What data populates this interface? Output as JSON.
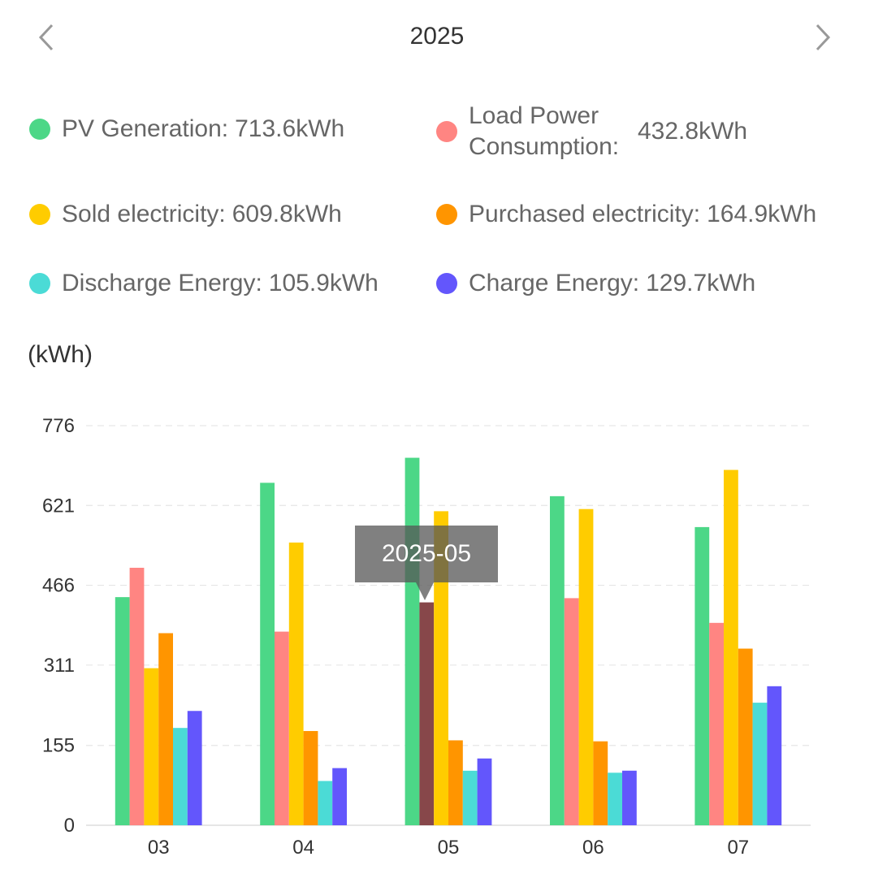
{
  "header": {
    "year": "2025",
    "prev_icon": "chevron-left-icon",
    "next_icon": "chevron-right-icon"
  },
  "legend": [
    {
      "label": "PV Generation:",
      "value": "713.6kWh",
      "color": "#4cd787"
    },
    {
      "label": "Load Power Consumption:",
      "value": "432.8kWh",
      "color": "#ff8582"
    },
    {
      "label": "Sold electricity:",
      "value": "609.8kWh",
      "color": "#ffcc00"
    },
    {
      "label": "Purchased electricity:",
      "value": "164.9kWh",
      "color": "#ff9500"
    },
    {
      "label": "Discharge Energy:",
      "value": "105.9kWh",
      "color": "#4bdbd6"
    },
    {
      "label": "Charge Energy:",
      "value": "129.7kWh",
      "color": "#6356fc"
    }
  ],
  "tooltip": {
    "text": "2025-05"
  },
  "chart_data": {
    "type": "bar",
    "unit_label": "(kWh)",
    "categories": [
      "03",
      "04",
      "05",
      "06",
      "07"
    ],
    "y_ticks": [
      "0",
      "155",
      "311",
      "466",
      "621",
      "776"
    ],
    "ylim": [
      0,
      776
    ],
    "grid": true,
    "highlight": {
      "category_index": 2,
      "series_index": 1,
      "color": "#87474a"
    },
    "series": [
      {
        "name": "PV Generation",
        "color": "#4cd787",
        "values": [
          443,
          665,
          713.6,
          639,
          579
        ]
      },
      {
        "name": "Load Power Consumption",
        "color": "#ff8582",
        "values": [
          500,
          376,
          432.8,
          441,
          393
        ]
      },
      {
        "name": "Sold electricity",
        "color": "#ffcc00",
        "values": [
          305,
          549,
          609.8,
          614,
          690
        ]
      },
      {
        "name": "Purchased electricity",
        "color": "#ff9500",
        "values": [
          373,
          183,
          164.9,
          163,
          343
        ]
      },
      {
        "name": "Discharge Energy",
        "color": "#4bdbd6",
        "values": [
          189,
          86,
          105.9,
          102,
          238
        ]
      },
      {
        "name": "Charge Energy",
        "color": "#6356fc",
        "values": [
          222,
          111,
          129.7,
          106,
          270
        ]
      }
    ]
  }
}
